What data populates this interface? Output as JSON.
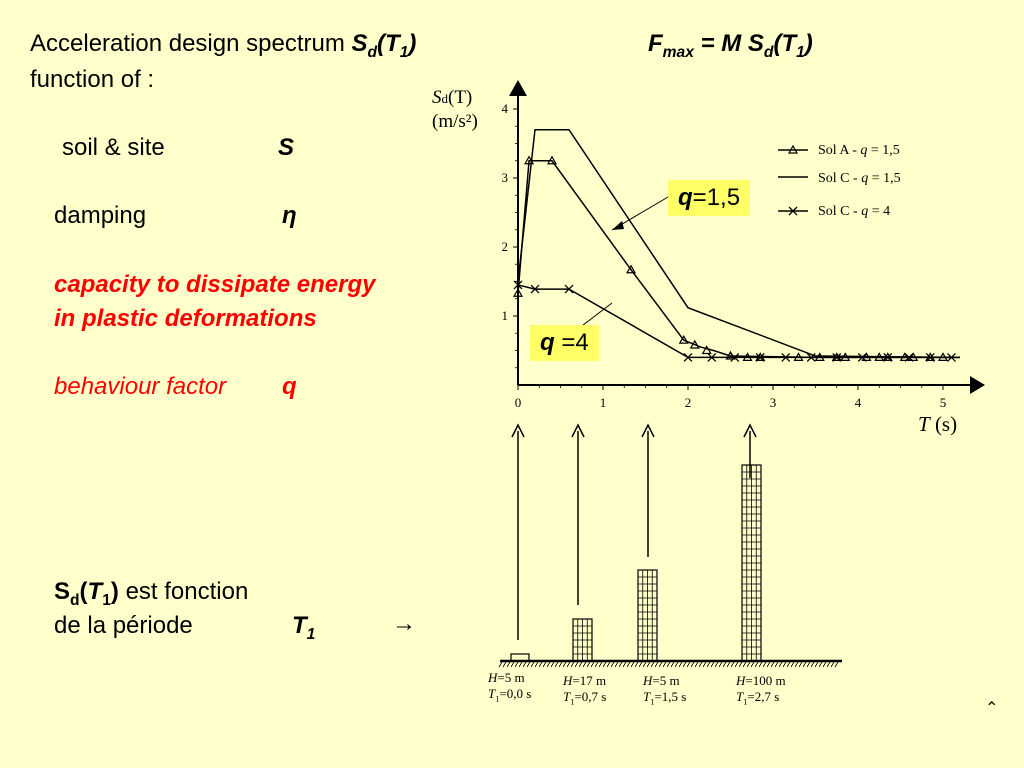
{
  "left": {
    "line1_prefix": "Acceleration design spectrum",
    "line1_formula": "S",
    "line1_sub": "d",
    "line1_arg": "(T",
    "line1_argsub": "1",
    "line1_close": ")",
    "line2": "function of :",
    "soil_label": "soil & site",
    "soil_symbol": "S",
    "damping_label": "damping",
    "damping_symbol": "η",
    "capacity_line1": "capacity to dissipate energy",
    "capacity_line2": "in plastic deformations",
    "behaviour_label": "behaviour factor",
    "behaviour_symbol": "q",
    "sd_S": "S",
    "sd_sub": "d",
    "sd_open": "(",
    "sd_T": "T",
    "sd_Tsub": "1",
    "sd_close": ")",
    "sd_rest": "est fonction",
    "periode_label": "de la période",
    "periode_T": "T",
    "periode_Tsub": "1",
    "arrow": "→"
  },
  "fmax": {
    "F": "F",
    "sub": "max",
    "eq": "= M S",
    "dsub": "d",
    "arg": "(T",
    "argsub": "1",
    "close": ")"
  },
  "q_boxes": {
    "q15_q": "q",
    "q15_val": "=1,5",
    "q4_q": "q",
    "q4_val": " =4"
  },
  "chart_data": {
    "type": "line",
    "ylabel_S": "S",
    "ylabel_d": "d",
    "ylabel_T": "(T)",
    "yunit": "(m/s²)",
    "xlabel_T": "T",
    "xlabel_s": "(s)",
    "xlim": [
      0,
      5.2
    ],
    "ylim": [
      0,
      4.3
    ],
    "xticks": [
      0,
      1,
      2,
      3,
      4,
      5
    ],
    "yticks": [
      1,
      2,
      3,
      4
    ],
    "legend_position": "top-right",
    "series": [
      {
        "name": "Sol A - q = 1,5",
        "marker": "triangle",
        "points": [
          [
            0,
            1.33
          ],
          [
            0.13,
            3.25
          ],
          [
            0.4,
            3.25
          ],
          [
            1.33,
            1.67
          ],
          [
            1.95,
            0.65
          ],
          [
            2.05,
            0.6
          ],
          [
            2.15,
            0.55
          ],
          [
            2.3,
            0.5
          ],
          [
            2.5,
            0.42
          ],
          [
            3.5,
            0.4
          ],
          [
            5.2,
            0.4
          ]
        ],
        "marker_points": [
          [
            0,
            1.33
          ],
          [
            0.13,
            3.25
          ],
          [
            0.4,
            3.25
          ],
          [
            1.33,
            1.67
          ],
          [
            1.95,
            0.65
          ],
          [
            2.08,
            0.58
          ],
          [
            2.22,
            0.5
          ],
          [
            2.5,
            0.42
          ],
          [
            2.7,
            0.4
          ],
          [
            2.85,
            0.4
          ],
          [
            3.3,
            0.4
          ],
          [
            3.55,
            0.4
          ],
          [
            3.75,
            0.4
          ],
          [
            3.85,
            0.4
          ],
          [
            4.1,
            0.4
          ],
          [
            4.25,
            0.4
          ],
          [
            4.35,
            0.4
          ],
          [
            4.55,
            0.4
          ],
          [
            4.65,
            0.4
          ],
          [
            4.85,
            0.4
          ],
          [
            5.0,
            0.4
          ]
        ]
      },
      {
        "name": "Sol C - q = 1,5",
        "marker": "none",
        "points": [
          [
            0,
            1.5
          ],
          [
            0.2,
            3.7
          ],
          [
            0.6,
            3.7
          ],
          [
            2.0,
            1.12
          ],
          [
            3.5,
            0.42
          ],
          [
            5.2,
            0.4
          ]
        ]
      },
      {
        "name": "Sol C - q = 4",
        "marker": "cross",
        "points": [
          [
            0,
            1.45
          ],
          [
            0.2,
            1.39
          ],
          [
            0.6,
            1.39
          ],
          [
            2.0,
            0.4
          ],
          [
            5.2,
            0.4
          ]
        ],
        "marker_points": [
          [
            0,
            1.45
          ],
          [
            0.2,
            1.39
          ],
          [
            0.6,
            1.39
          ],
          [
            2.0,
            0.4
          ],
          [
            2.28,
            0.4
          ],
          [
            2.55,
            0.4
          ],
          [
            2.85,
            0.4
          ],
          [
            3.15,
            0.4
          ],
          [
            3.45,
            0.4
          ],
          [
            3.75,
            0.4
          ],
          [
            4.05,
            0.4
          ],
          [
            4.35,
            0.4
          ],
          [
            4.6,
            0.4
          ],
          [
            4.85,
            0.4
          ],
          [
            5.1,
            0.4
          ]
        ]
      }
    ],
    "legend": [
      {
        "name_prefix": "Sol A - ",
        "q": "q",
        "name_suffix": " = 1,5"
      },
      {
        "name_prefix": "Sol C - ",
        "q": "q",
        "name_suffix": " = 1,5"
      },
      {
        "name_prefix": "Sol C - ",
        "q": "q",
        "name_suffix": " = 4"
      }
    ]
  },
  "buildings": [
    {
      "H": "H",
      "H_val": "=5 m",
      "T": "T",
      "T_sub": "1",
      "T_val": "=0,0 s",
      "storeys": 1
    },
    {
      "H": "H",
      "H_val": "=17 m",
      "T": "T",
      "T_sub": "1",
      "T_val": "=0,7 s",
      "storeys": 6
    },
    {
      "H": "H",
      "H_val": "=5 m",
      "T": "T",
      "T_sub": "1",
      "T_val": "=1,5 s",
      "storeys": 13
    },
    {
      "H": "H",
      "H_val": "=100 m",
      "T": "T",
      "T_sub": "1",
      "T_val": "=2,7 s",
      "storeys": 28
    }
  ],
  "colors": {
    "background": "#ffffcc",
    "q_box": "#ffff66",
    "emphasis": "#ff0000"
  },
  "nav_icon": "up-arrow-icon"
}
